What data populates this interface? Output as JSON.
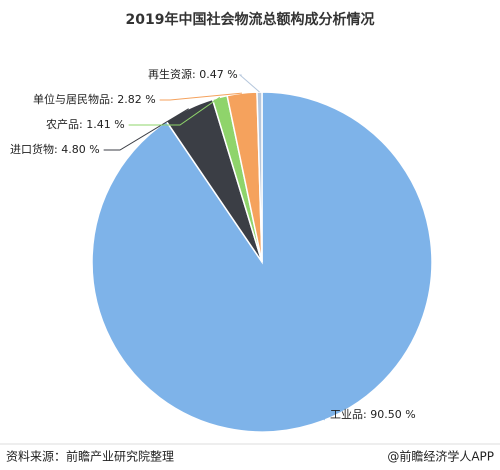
{
  "chart_data": {
    "type": "pie",
    "title": "2019年中国社会物流总额构成分析情况",
    "categories": [
      "工业品",
      "进口货物",
      "农产品",
      "单位与居民物品",
      "再生资源"
    ],
    "values": [
      90.5,
      4.8,
      1.41,
      2.82,
      0.47
    ],
    "value_labels": [
      "90.50 %",
      "4.80 %",
      "1.41 %",
      "2.82 %",
      "0.47 %"
    ],
    "colors": [
      "#7eb3e9",
      "#3b3e45",
      "#8fd46b",
      "#f5a25d",
      "#b6c7dc"
    ],
    "source": "资料来源：前瞻产业研究院整理",
    "credit": "@前瞻经济学人APP"
  }
}
